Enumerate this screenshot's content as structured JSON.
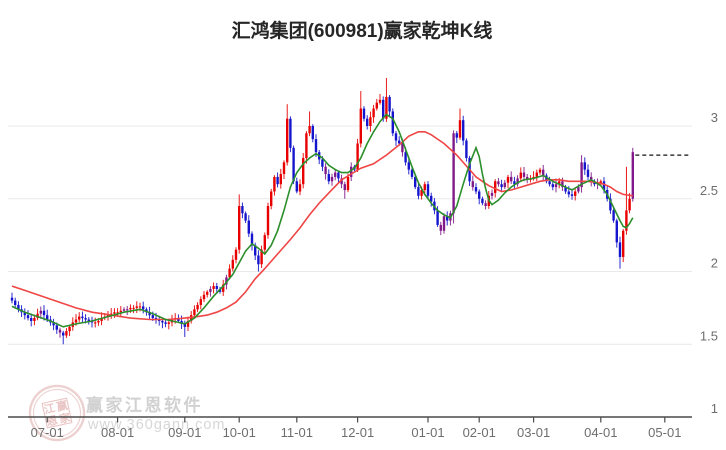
{
  "window": {
    "title": "汇鸿集团(600981)赢家乾坤K线"
  },
  "watermark": {
    "brand": "赢家江恩软件",
    "url": "www.360gann.com",
    "seal_chars": [
      "江",
      "赢",
      "恩",
      "家"
    ]
  },
  "colors": {
    "up": "#e80000",
    "down": "#1515cd",
    "purple": "#801a8a",
    "ma_fast": "#2b8f2b",
    "ma_slow": "#ef4545",
    "grid": "#e9e9e9",
    "axis": "#4a4a4a",
    "label": "#6e6e6e",
    "dashed_line": "#101010",
    "watermark_pink": "#eac9c9"
  },
  "chart_data": {
    "type": "candlestick",
    "title": "汇鸿集团(600981)赢家乾坤K线",
    "xlabel": "",
    "ylabel": "",
    "ylim": [
      1.0,
      3.45
    ],
    "grid": true,
    "x_tick_labels": [
      "07-01",
      "08-01",
      "09-01",
      "10-01",
      "11-01",
      "12-01",
      "01-01",
      "02-01",
      "03-01",
      "04-01",
      "05-01"
    ],
    "x_tick_days": [
      11,
      33,
      54,
      71,
      89,
      108,
      130,
      146,
      163,
      184,
      204
    ],
    "y_tick_prices": [
      3,
      2.5,
      2,
      1.5,
      1
    ],
    "y_tick_labels": [
      "3",
      "2.5",
      "2",
      "1.5",
      "1"
    ],
    "last_close_line": 2.8,
    "first_open": 1.82,
    "closes": [
      1.8,
      1.77,
      1.74,
      1.72,
      1.7,
      1.68,
      1.66,
      1.68,
      1.71,
      1.73,
      1.7,
      1.67,
      1.65,
      1.63,
      1.6,
      1.58,
      1.56,
      1.59,
      1.62,
      1.65,
      1.67,
      1.69,
      1.68,
      1.67,
      1.66,
      1.65,
      1.65,
      1.66,
      1.68,
      1.69,
      1.7,
      1.71,
      1.72,
      1.72,
      1.73,
      1.74,
      1.74,
      1.75,
      1.75,
      1.76,
      1.76,
      1.74,
      1.72,
      1.7,
      1.68,
      1.67,
      1.66,
      1.65,
      1.64,
      1.65,
      1.67,
      1.68,
      1.66,
      1.64,
      1.62,
      1.66,
      1.7,
      1.74,
      1.77,
      1.81,
      1.84,
      1.86,
      1.88,
      1.9,
      1.88,
      1.86,
      1.91,
      1.96,
      2.02,
      2.08,
      2.15,
      2.45,
      2.4,
      2.35,
      2.26,
      2.18,
      2.11,
      2.05,
      2.15,
      2.25,
      2.45,
      2.55,
      2.65,
      2.6,
      2.67,
      2.75,
      3.05,
      2.85,
      2.62,
      2.55,
      2.6,
      2.78,
      2.95,
      3.0,
      2.91,
      2.82,
      2.77,
      2.72,
      2.67,
      2.62,
      2.65,
      2.68,
      2.64,
      2.6,
      2.56,
      2.65,
      2.72,
      2.7,
      2.88,
      3.12,
      3.05,
      3.0,
      3.06,
      3.12,
      3.16,
      3.18,
      3.05,
      3.2,
      3.1,
      2.95,
      2.9,
      2.88,
      2.82,
      2.75,
      2.7,
      2.65,
      2.58,
      2.52,
      2.56,
      2.6,
      2.52,
      2.48,
      2.42,
      2.32,
      2.28,
      2.38,
      2.35,
      2.4,
      2.95,
      2.92,
      3.04,
      2.9,
      2.78,
      2.62,
      2.58,
      2.55,
      2.5,
      2.47,
      2.45,
      2.52,
      2.54,
      2.62,
      2.6,
      2.58,
      2.61,
      2.65,
      2.62,
      2.6,
      2.64,
      2.68,
      2.65,
      2.63,
      2.64,
      2.65,
      2.68,
      2.7,
      2.66,
      2.62,
      2.6,
      2.58,
      2.6,
      2.62,
      2.58,
      2.55,
      2.53,
      2.52,
      2.55,
      2.58,
      2.75,
      2.7,
      2.65,
      2.62,
      2.6,
      2.61,
      2.62,
      2.56,
      2.5,
      2.42,
      2.35,
      2.2,
      2.1,
      2.28,
      2.42,
      2.5,
      2.82
    ],
    "purple_days": [
      9,
      15,
      35,
      36,
      62,
      67,
      98,
      100,
      101,
      103,
      104,
      106,
      122,
      134,
      135,
      137,
      138,
      144,
      148,
      150,
      152,
      154,
      156,
      158,
      160,
      161,
      166,
      170,
      172,
      177,
      178,
      181,
      183,
      194
    ],
    "wick_overrides": {
      "16": {
        "l": 1.5
      },
      "54": {
        "l": 1.55
      },
      "71": {
        "h": 2.53
      },
      "77": {
        "l": 2.0
      },
      "86": {
        "h": 3.15
      },
      "93": {
        "h": 3.1
      },
      "104": {
        "l": 2.5
      },
      "109": {
        "h": 3.24
      },
      "115": {
        "h": 3.22
      },
      "117": {
        "h": 3.33
      },
      "134": {
        "l": 2.25
      },
      "138": {
        "h": 2.97,
        "l": 2.33
      },
      "140": {
        "h": 3.12
      },
      "178": {
        "h": 2.8
      },
      "190": {
        "l": 2.02
      },
      "192": {
        "h": 2.72
      },
      "194": {
        "h": 2.85,
        "l": 2.48
      }
    },
    "ma_fast_green": [
      [
        0,
        1.76
      ],
      [
        4,
        1.72
      ],
      [
        8,
        1.69
      ],
      [
        12,
        1.66
      ],
      [
        16,
        1.62
      ],
      [
        20,
        1.64
      ],
      [
        25,
        1.66
      ],
      [
        30,
        1.69
      ],
      [
        35,
        1.72
      ],
      [
        40,
        1.74
      ],
      [
        44,
        1.71
      ],
      [
        48,
        1.67
      ],
      [
        52,
        1.65
      ],
      [
        54,
        1.64
      ],
      [
        57,
        1.68
      ],
      [
        60,
        1.75
      ],
      [
        63,
        1.83
      ],
      [
        66,
        1.9
      ],
      [
        69,
        1.98
      ],
      [
        71,
        2.06
      ],
      [
        73,
        2.14
      ],
      [
        75,
        2.19
      ],
      [
        77,
        2.16
      ],
      [
        79,
        2.12
      ],
      [
        81,
        2.18
      ],
      [
        83,
        2.28
      ],
      [
        85,
        2.42
      ],
      [
        87,
        2.58
      ],
      [
        89,
        2.68
      ],
      [
        91,
        2.74
      ],
      [
        93,
        2.78
      ],
      [
        95,
        2.81
      ],
      [
        97,
        2.78
      ],
      [
        99,
        2.73
      ],
      [
        101,
        2.7
      ],
      [
        103,
        2.68
      ],
      [
        105,
        2.68
      ],
      [
        107,
        2.71
      ],
      [
        109,
        2.78
      ],
      [
        111,
        2.88
      ],
      [
        113,
        2.96
      ],
      [
        115,
        3.03
      ],
      [
        117,
        3.08
      ],
      [
        119,
        3.05
      ],
      [
        121,
        2.96
      ],
      [
        123,
        2.84
      ],
      [
        125,
        2.72
      ],
      [
        127,
        2.61
      ],
      [
        129,
        2.53
      ],
      [
        131,
        2.47
      ],
      [
        133,
        2.42
      ],
      [
        135,
        2.39
      ],
      [
        137,
        2.37
      ],
      [
        139,
        2.45
      ],
      [
        141,
        2.6
      ],
      [
        143,
        2.74
      ],
      [
        145,
        2.85
      ],
      [
        146,
        2.79
      ],
      [
        147,
        2.67
      ],
      [
        148,
        2.57
      ],
      [
        149,
        2.49
      ],
      [
        150,
        2.46
      ],
      [
        152,
        2.49
      ],
      [
        154,
        2.54
      ],
      [
        156,
        2.58
      ],
      [
        158,
        2.61
      ],
      [
        160,
        2.63
      ],
      [
        163,
        2.64
      ],
      [
        166,
        2.66
      ],
      [
        169,
        2.62
      ],
      [
        172,
        2.59
      ],
      [
        175,
        2.56
      ],
      [
        178,
        2.6
      ],
      [
        181,
        2.63
      ],
      [
        184,
        2.59
      ],
      [
        186,
        2.53
      ],
      [
        188,
        2.44
      ],
      [
        190,
        2.35
      ],
      [
        191,
        2.31
      ],
      [
        192,
        2.3
      ],
      [
        193,
        2.33
      ],
      [
        194,
        2.37
      ]
    ],
    "ma_slow_red": [
      [
        0,
        1.9
      ],
      [
        4,
        1.87
      ],
      [
        8,
        1.84
      ],
      [
        12,
        1.81
      ],
      [
        16,
        1.78
      ],
      [
        20,
        1.75
      ],
      [
        25,
        1.72
      ],
      [
        31,
        1.7
      ],
      [
        37,
        1.68
      ],
      [
        43,
        1.67
      ],
      [
        49,
        1.67
      ],
      [
        54,
        1.68
      ],
      [
        58,
        1.69
      ],
      [
        61,
        1.7
      ],
      [
        64,
        1.72
      ],
      [
        67,
        1.75
      ],
      [
        70,
        1.79
      ],
      [
        73,
        1.86
      ],
      [
        76,
        1.95
      ],
      [
        79,
        2.02
      ],
      [
        83,
        2.12
      ],
      [
        87,
        2.22
      ],
      [
        90,
        2.3
      ],
      [
        93,
        2.39
      ],
      [
        96,
        2.47
      ],
      [
        99,
        2.54
      ],
      [
        103,
        2.63
      ],
      [
        106,
        2.67
      ],
      [
        109,
        2.71
      ],
      [
        113,
        2.74
      ],
      [
        117,
        2.8
      ],
      [
        121,
        2.87
      ],
      [
        124,
        2.93
      ],
      [
        127,
        2.96
      ],
      [
        129,
        2.96
      ],
      [
        131,
        2.94
      ],
      [
        133,
        2.91
      ],
      [
        135,
        2.88
      ],
      [
        137,
        2.84
      ],
      [
        139,
        2.8
      ],
      [
        141,
        2.75
      ],
      [
        143,
        2.7
      ],
      [
        145,
        2.65
      ],
      [
        147,
        2.62
      ],
      [
        149,
        2.59
      ],
      [
        151,
        2.57
      ],
      [
        153,
        2.55
      ],
      [
        156,
        2.56
      ],
      [
        159,
        2.58
      ],
      [
        162,
        2.6
      ],
      [
        165,
        2.62
      ],
      [
        168,
        2.63
      ],
      [
        171,
        2.63
      ],
      [
        174,
        2.62
      ],
      [
        177,
        2.62
      ],
      [
        180,
        2.62
      ],
      [
        183,
        2.61
      ],
      [
        185,
        2.6
      ],
      [
        187,
        2.58
      ],
      [
        189,
        2.55
      ],
      [
        191,
        2.53
      ],
      [
        194,
        2.52
      ]
    ]
  }
}
